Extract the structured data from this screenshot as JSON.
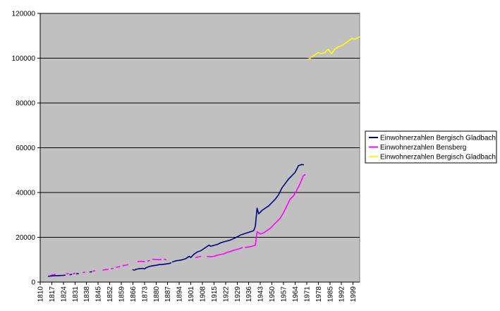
{
  "chart_data": {
    "type": "line",
    "title": "",
    "xlabel": "",
    "ylabel": "",
    "ylim": [
      0,
      120000
    ],
    "y_ticks": [
      0,
      20000,
      40000,
      60000,
      80000,
      100000,
      120000
    ],
    "y_tick_labels": [
      "0",
      "20000",
      "40000",
      "60000",
      "80000",
      "100000",
      "120000"
    ],
    "xlim": [
      1810,
      2003
    ],
    "x_ticks": [
      1810,
      1817,
      1824,
      1831,
      1838,
      1845,
      1852,
      1859,
      1866,
      1873,
      1880,
      1887,
      1894,
      1901,
      1908,
      1915,
      1922,
      1929,
      1936,
      1943,
      1950,
      1957,
      1964,
      1971,
      1978,
      1985,
      1992,
      1999
    ],
    "x_tick_labels": [
      "1810",
      "1817",
      "1824",
      "1831",
      "1838",
      "1845",
      "1852",
      "1859",
      "1866",
      "1873",
      "1880",
      "1887",
      "1894",
      "1901",
      "1908",
      "1915",
      "1922",
      "1929",
      "1936",
      "1943",
      "1950",
      "1957",
      "1964",
      "1971",
      "1978",
      "1985",
      "1992",
      "1999"
    ],
    "grid": {
      "y_major": true,
      "x_major": false
    },
    "plot_background": "#c0c0c0",
    "legend_position": "right",
    "series": [
      {
        "name": "Einwohnerzahlen Bergisch Gladbach",
        "color": "#000080",
        "segments": [
          [
            [
              1815,
              2600
            ],
            [
              1818,
              2800
            ],
            [
              1821,
              2900
            ],
            [
              1824,
              3000
            ],
            [
              1825,
              3100
            ]
          ],
          [
            [
              1828,
              3300
            ],
            [
              1829,
              3400
            ]
          ],
          [
            [
              1832,
              3700
            ],
            [
              1833,
              3800
            ]
          ],
          [
            [
              1840,
              4500
            ],
            [
              1841,
              4600
            ]
          ],
          [
            [
              1866,
              5500
            ],
            [
              1867,
              5400
            ],
            [
              1868,
              5700
            ],
            [
              1870,
              6000
            ],
            [
              1872,
              6100
            ],
            [
              1873,
              5900
            ],
            [
              1874,
              6400
            ],
            [
              1876,
              7000
            ],
            [
              1878,
              7300
            ],
            [
              1880,
              7500
            ],
            [
              1882,
              7800
            ],
            [
              1884,
              7900
            ],
            [
              1886,
              8100
            ],
            [
              1888,
              8300
            ],
            [
              1889,
              8600
            ]
          ],
          [
            [
              1890,
              9000
            ],
            [
              1892,
              9500
            ],
            [
              1894,
              9700
            ],
            [
              1896,
              10000
            ],
            [
              1898,
              10500
            ],
            [
              1900,
              11500
            ],
            [
              1901,
              11000
            ],
            [
              1903,
              12500
            ],
            [
              1905,
              13500
            ],
            [
              1907,
              14000
            ],
            [
              1909,
              15000
            ],
            [
              1911,
              16000
            ],
            [
              1912,
              16500
            ],
            [
              1913,
              16000
            ],
            [
              1915,
              16400
            ],
            [
              1917,
              16800
            ],
            [
              1919,
              17500
            ],
            [
              1921,
              18000
            ],
            [
              1923,
              18400
            ],
            [
              1925,
              18800
            ],
            [
              1927,
              19500
            ],
            [
              1929,
              20200
            ],
            [
              1931,
              21000
            ],
            [
              1933,
              21500
            ],
            [
              1935,
              22000
            ],
            [
              1937,
              22500
            ],
            [
              1939,
              23000
            ],
            [
              1940,
              25000
            ],
            [
              1941,
              33000
            ],
            [
              1942,
              30500
            ],
            [
              1944,
              32000
            ],
            [
              1946,
              33000
            ],
            [
              1948,
              34000
            ],
            [
              1950,
              35500
            ],
            [
              1952,
              37000
            ],
            [
              1954,
              39000
            ],
            [
              1956,
              42000
            ],
            [
              1958,
              44000
            ],
            [
              1960,
              46000
            ],
            [
              1962,
              47500
            ],
            [
              1964,
              49000
            ],
            [
              1966,
              52000
            ],
            [
              1968,
              52500
            ],
            [
              1969,
              52400
            ]
          ]
        ]
      },
      {
        "name": "Einwohnerzahlen Bensberg",
        "color": "#ff00ff",
        "segments": [
          [
            [
              1817,
              3200
            ],
            [
              1818,
              3300
            ],
            [
              1819,
              3400
            ]
          ],
          [
            [
              1826,
              3700
            ],
            [
              1827,
              3800
            ]
          ],
          [
            [
              1830,
              3800
            ],
            [
              1831,
              3900
            ]
          ],
          [
            [
              1836,
              4300
            ],
            [
              1837,
              4400
            ]
          ],
          [
            [
              1842,
              4900
            ],
            [
              1843,
              5000
            ]
          ],
          [
            [
              1848,
              5400
            ],
            [
              1850,
              5600
            ],
            [
              1851,
              5700
            ]
          ],
          [
            [
              1853,
              6000
            ],
            [
              1854,
              6100
            ]
          ],
          [
            [
              1856,
              6600
            ],
            [
              1858,
              6900
            ]
          ],
          [
            [
              1860,
              7300
            ],
            [
              1862,
              7600
            ],
            [
              1863,
              7800
            ]
          ],
          [
            [
              1869,
              9200
            ],
            [
              1871,
              9300
            ],
            [
              1872,
              9200
            ],
            [
              1873,
              9200
            ]
          ],
          [
            [
              1875,
              9400
            ],
            [
              1876,
              9600
            ]
          ],
          [
            [
              1878,
              10200
            ],
            [
              1880,
              10100
            ],
            [
              1882,
              10000
            ],
            [
              1883,
              10100
            ]
          ],
          [
            [
              1885,
              10200
            ],
            [
              1886,
              10000
            ]
          ],
          [
            [
              1904,
              11000
            ],
            [
              1906,
              11300
            ],
            [
              1907,
              11500
            ]
          ],
          [
            [
              1911,
              11400
            ],
            [
              1913,
              11300
            ],
            [
              1915,
              11500
            ],
            [
              1917,
              12000
            ],
            [
              1919,
              12300
            ],
            [
              1921,
              12600
            ],
            [
              1923,
              13300
            ],
            [
              1925,
              13700
            ],
            [
              1927,
              14200
            ],
            [
              1929,
              14600
            ],
            [
              1931,
              15100
            ],
            [
              1932,
              15400
            ]
          ],
          [
            [
              1934,
              15500
            ],
            [
              1936,
              15700
            ],
            [
              1938,
              16000
            ],
            [
              1940,
              16500
            ],
            [
              1941,
              22500
            ],
            [
              1943,
              21500
            ],
            [
              1945,
              22000
            ],
            [
              1947,
              23000
            ],
            [
              1949,
              24000
            ],
            [
              1951,
              25500
            ],
            [
              1953,
              27000
            ],
            [
              1955,
              28500
            ],
            [
              1957,
              31000
            ],
            [
              1959,
              34000
            ],
            [
              1961,
              37000
            ],
            [
              1963,
              38500
            ],
            [
              1965,
              41000
            ],
            [
              1967,
              44000
            ],
            [
              1969,
              47500
            ],
            [
              1970,
              48000
            ]
          ]
        ]
      },
      {
        "name": "Einwohnerzahlen Bergisch Gladbach",
        "color": "#ffff00",
        "segments": [
          [
            [
              1972,
              99500
            ],
            [
              1974,
              100500
            ],
            [
              1976,
              101500
            ],
            [
              1978,
              102500
            ],
            [
              1980,
              102000
            ],
            [
              1982,
              102500
            ],
            [
              1984,
              104000
            ],
            [
              1986,
              102000
            ],
            [
              1988,
              104000
            ],
            [
              1990,
              105000
            ],
            [
              1992,
              105500
            ],
            [
              1994,
              106500
            ],
            [
              1996,
              107500
            ],
            [
              1998,
              108800
            ],
            [
              2000,
              108500
            ],
            [
              2003,
              109500
            ]
          ]
        ]
      }
    ]
  }
}
